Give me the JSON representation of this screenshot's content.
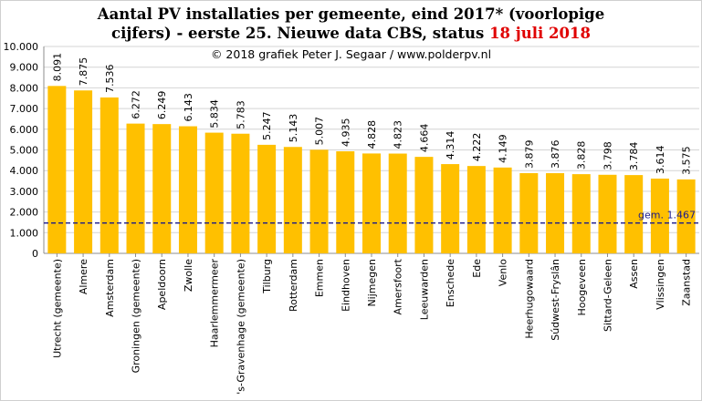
{
  "chart_data": {
    "type": "bar",
    "title_line1": "Aantal PV installaties  per gemeente, eind 2017* (voorlopige",
    "title_line2_prefix": "cijfers) - eerste 25. Nieuwe data CBS, status ",
    "title_line2_highlight": "18 juli  2018",
    "credit": "© 2018  grafiek Peter J. Segaar / www.polderpv.nl",
    "categories": [
      "Utrecht (gemeente)",
      "Almere",
      "Amsterdam",
      "Groningen (gemeente)",
      "Apeldoorn",
      "Zwolle",
      "Haarlemmermeer",
      "'s-Gravenhage (gemeente)",
      "Tilburg",
      "Rotterdam",
      "Emmen",
      "Eindhoven",
      "Nijmegen",
      "Amersfoort",
      "Leeuwarden",
      "Enschede",
      "Ede",
      "Venlo",
      "Heerhugowaard",
      "Súdwest-Fryslân",
      "Hoogeveen",
      "Sittard-Geleen",
      "Assen",
      "Vlissingen",
      "Zaanstad"
    ],
    "values": [
      8091,
      7875,
      7536,
      6272,
      6249,
      6143,
      5834,
      5783,
      5247,
      5143,
      5007,
      4935,
      4828,
      4823,
      4664,
      4314,
      4222,
      4149,
      3879,
      3876,
      3828,
      3798,
      3784,
      3614,
      3575
    ],
    "value_labels": [
      "8.091",
      "7.875",
      "7.536",
      "6.272",
      "6.249",
      "6.143",
      "5.834",
      "5.783",
      "5.247",
      "5.143",
      "5.007",
      "4.935",
      "4.828",
      "4.823",
      "4.664",
      "4.314",
      "4.222",
      "4.149",
      "3.879",
      "3.876",
      "3.828",
      "3.798",
      "3.784",
      "3.614",
      "3.575"
    ],
    "yticks": [
      0,
      1000,
      2000,
      3000,
      4000,
      5000,
      6000,
      7000,
      8000,
      9000,
      10000
    ],
    "ytick_labels": [
      "0",
      "1.000",
      "2.000",
      "3.000",
      "4.000",
      "5.000",
      "6.000",
      "7.000",
      "8.000",
      "9.000",
      "10.000"
    ],
    "ylim": [
      0,
      10000
    ],
    "grid": true,
    "average": {
      "value": 1467,
      "label": "gem. 1.467",
      "color": "#1a1a8c"
    },
    "bar_color": "#ffc000",
    "title_highlight_color": "#e00000"
  }
}
